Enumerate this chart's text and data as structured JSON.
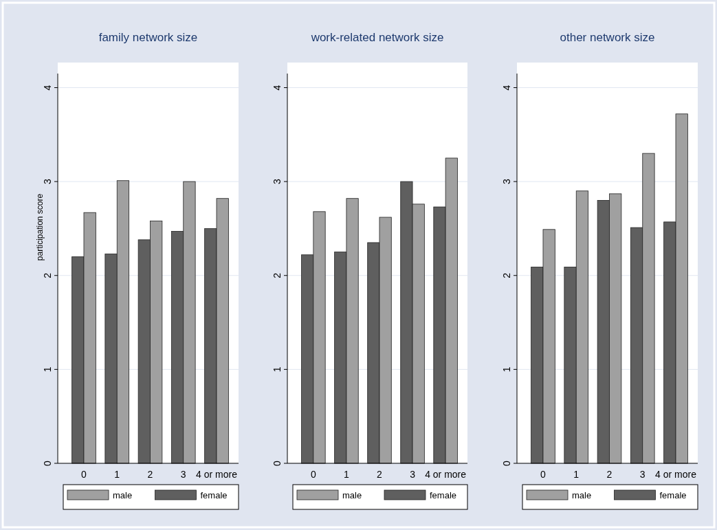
{
  "chart_data": [
    {
      "type": "bar",
      "title": "family network size",
      "ylabel": "participation score",
      "categories": [
        "0",
        "1",
        "2",
        "3",
        "4 or more"
      ],
      "ylim": [
        0,
        4.15
      ],
      "yticks": [
        0,
        1,
        2,
        3,
        4
      ],
      "grid": "y",
      "legend": "bottom",
      "series": [
        {
          "name": "female",
          "color": "#5f5f5f",
          "values": [
            2.2,
            2.23,
            2.38,
            2.47,
            2.5
          ]
        },
        {
          "name": "male",
          "color": "#a0a0a0",
          "values": [
            2.67,
            3.01,
            2.58,
            3.0,
            2.82
          ]
        }
      ]
    },
    {
      "type": "bar",
      "title": "work-related network size",
      "categories": [
        "0",
        "1",
        "2",
        "3",
        "4 or more"
      ],
      "ylim": [
        0,
        4.15
      ],
      "yticks": [
        0,
        1,
        2,
        3,
        4
      ],
      "grid": "y",
      "legend": "bottom",
      "series": [
        {
          "name": "female",
          "color": "#5f5f5f",
          "values": [
            2.22,
            2.25,
            2.35,
            3.0,
            2.73
          ]
        },
        {
          "name": "male",
          "color": "#a0a0a0",
          "values": [
            2.68,
            2.82,
            2.62,
            2.76,
            3.25
          ]
        }
      ]
    },
    {
      "type": "bar",
      "title": "other network size",
      "categories": [
        "0",
        "1",
        "2",
        "3",
        "4 or more"
      ],
      "ylim": [
        0,
        4.15
      ],
      "yticks": [
        0,
        1,
        2,
        3,
        4
      ],
      "grid": "y",
      "legend": "bottom",
      "series": [
        {
          "name": "female",
          "color": "#5f5f5f",
          "values": [
            2.09,
            2.09,
            2.8,
            2.51,
            2.57
          ]
        },
        {
          "name": "male",
          "color": "#a0a0a0",
          "values": [
            2.49,
            2.9,
            2.87,
            3.3,
            3.72
          ]
        }
      ]
    }
  ]
}
